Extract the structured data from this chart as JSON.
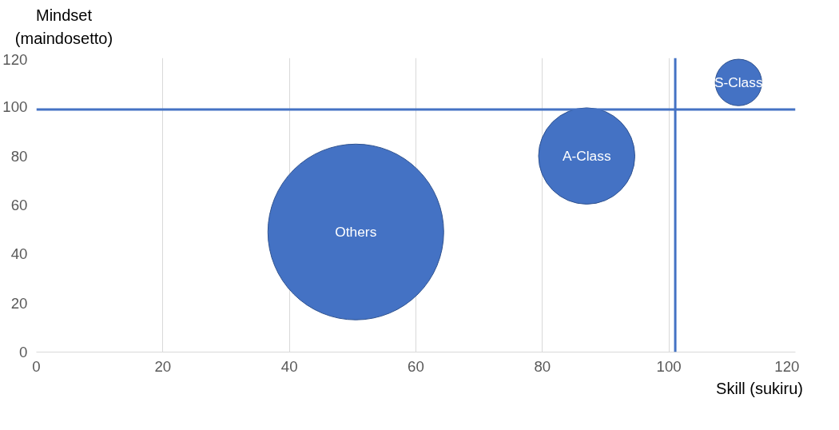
{
  "chart_data": {
    "type": "bubble",
    "xlabel": "Skill (sukiru)",
    "ylabel": "Mindset (maindosetto)",
    "xlim": [
      0,
      120
    ],
    "ylim": [
      0,
      120
    ],
    "xticks": [
      0,
      20,
      40,
      60,
      80,
      100,
      120
    ],
    "yticks": [
      0,
      20,
      40,
      60,
      80,
      100,
      120
    ],
    "grid": "x",
    "series": [
      {
        "name": "Others",
        "color": "#4472c4",
        "x": [
          50.5
        ],
        "values": [
          49
        ],
        "sizes": [
          1
        ]
      },
      {
        "name": "A-Class",
        "color": "#4472c4",
        "x": [
          87
        ],
        "values": [
          80
        ],
        "sizes": [
          0.3
        ]
      },
      {
        "name": "S-Class",
        "color": "#4472c4",
        "x": [
          111
        ],
        "values": [
          110
        ],
        "sizes": [
          0.07
        ]
      }
    ],
    "ref_lines": [
      {
        "axis": "y",
        "value": 99,
        "color": "#4472c4"
      },
      {
        "axis": "x",
        "value": 101,
        "color": "#4472c4"
      }
    ]
  }
}
